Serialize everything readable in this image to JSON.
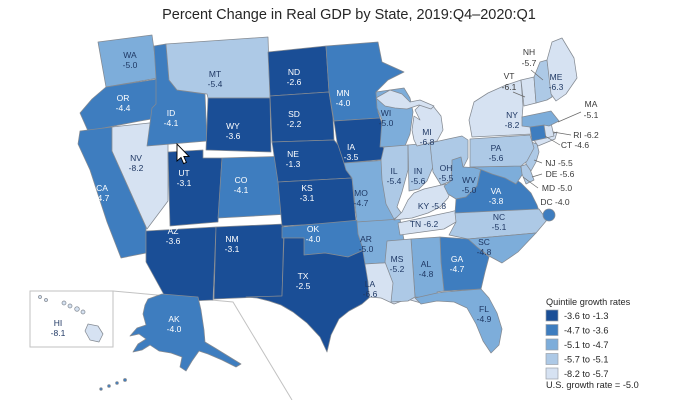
{
  "title": "Percent Change in Real GDP by State, 2019:Q4–2020:Q1",
  "legend": {
    "title": "Quintile growth rates",
    "items": [
      {
        "label": "-3.6 to -1.3",
        "color": "#1a4e96"
      },
      {
        "label": "-4.7 to -3.6",
        "color": "#3e7dbf"
      },
      {
        "label": "-5.1 to -4.7",
        "color": "#7dadda"
      },
      {
        "label": "-5.7 to -5.1",
        "color": "#adc9e6"
      },
      {
        "label": "-8.2 to -5.7",
        "color": "#d6e2f2"
      }
    ],
    "footnote": "U.S. growth rate = -5.0"
  },
  "icons": {
    "cursor": "mouse-pointer-arrow"
  },
  "chart_data": {
    "type": "choropleth",
    "title": "Percent Change in Real GDP by State, 2019:Q4–2020:Q1",
    "unit": "percent change in real GDP",
    "us_growth_rate": -5.0,
    "quintile_ranges": [
      "-3.6 to -1.3",
      "-4.7 to -3.6",
      "-5.1 to -4.7",
      "-5.7 to -5.1",
      "-8.2 to -5.7"
    ],
    "states": [
      {
        "code": "WA",
        "value": -5.0,
        "quintile": 3
      },
      {
        "code": "OR",
        "value": -4.4,
        "quintile": 2
      },
      {
        "code": "CA",
        "value": -4.7,
        "quintile": 2
      },
      {
        "code": "NV",
        "value": -8.2,
        "quintile": 5
      },
      {
        "code": "ID",
        "value": -4.1,
        "quintile": 2
      },
      {
        "code": "MT",
        "value": -5.4,
        "quintile": 4
      },
      {
        "code": "WY",
        "value": -3.6,
        "quintile": 1
      },
      {
        "code": "UT",
        "value": -3.1,
        "quintile": 1
      },
      {
        "code": "CO",
        "value": -4.1,
        "quintile": 2
      },
      {
        "code": "AZ",
        "value": -3.6,
        "quintile": 1
      },
      {
        "code": "NM",
        "value": -3.1,
        "quintile": 1
      },
      {
        "code": "ND",
        "value": -2.6,
        "quintile": 1
      },
      {
        "code": "SD",
        "value": -2.2,
        "quintile": 1
      },
      {
        "code": "NE",
        "value": -1.3,
        "quintile": 1
      },
      {
        "code": "KS",
        "value": -3.1,
        "quintile": 1
      },
      {
        "code": "OK",
        "value": -4.0,
        "quintile": 2
      },
      {
        "code": "TX",
        "value": -2.5,
        "quintile": 1
      },
      {
        "code": "MN",
        "value": -4.0,
        "quintile": 2
      },
      {
        "code": "IA",
        "value": -3.5,
        "quintile": 1
      },
      {
        "code": "MO",
        "value": -4.7,
        "quintile": 3
      },
      {
        "code": "AR",
        "value": -5.0,
        "quintile": 3
      },
      {
        "code": "LA",
        "value": -6.6,
        "quintile": 5
      },
      {
        "code": "WI",
        "value": -5.0,
        "quintile": 3
      },
      {
        "code": "IL",
        "value": -5.4,
        "quintile": 4
      },
      {
        "code": "IN",
        "value": -5.6,
        "quintile": 4
      },
      {
        "code": "MI",
        "value": -6.8,
        "quintile": 5
      },
      {
        "code": "OH",
        "value": -5.5,
        "quintile": 4
      },
      {
        "code": "KY",
        "value": -5.8,
        "quintile": 5
      },
      {
        "code": "TN",
        "value": -6.2,
        "quintile": 5
      },
      {
        "code": "MS",
        "value": -5.2,
        "quintile": 4
      },
      {
        "code": "AL",
        "value": -4.8,
        "quintile": 3
      },
      {
        "code": "GA",
        "value": -4.7,
        "quintile": 2
      },
      {
        "code": "FL",
        "value": -4.9,
        "quintile": 3
      },
      {
        "code": "SC",
        "value": -4.8,
        "quintile": 3
      },
      {
        "code": "NC",
        "value": -5.1,
        "quintile": 4
      },
      {
        "code": "VA",
        "value": -3.8,
        "quintile": 2
      },
      {
        "code": "WV",
        "value": -5.0,
        "quintile": 3
      },
      {
        "code": "MD",
        "value": -5.0,
        "quintile": 3
      },
      {
        "code": "DE",
        "value": -5.6,
        "quintile": 4
      },
      {
        "code": "NJ",
        "value": -5.5,
        "quintile": 4
      },
      {
        "code": "PA",
        "value": -5.6,
        "quintile": 4
      },
      {
        "code": "NY",
        "value": -8.2,
        "quintile": 5
      },
      {
        "code": "CT",
        "value": -4.6,
        "quintile": 2
      },
      {
        "code": "RI",
        "value": -6.2,
        "quintile": 5
      },
      {
        "code": "MA",
        "value": -5.1,
        "quintile": 3
      },
      {
        "code": "VT",
        "value": -6.1,
        "quintile": 5
      },
      {
        "code": "NH",
        "value": -5.7,
        "quintile": 4
      },
      {
        "code": "ME",
        "value": -6.3,
        "quintile": 5
      },
      {
        "code": "AK",
        "value": -4.0,
        "quintile": 2
      },
      {
        "code": "HI",
        "value": -8.1,
        "quintile": 5
      },
      {
        "code": "DC",
        "value": -4.0,
        "quintile": 2
      }
    ]
  }
}
